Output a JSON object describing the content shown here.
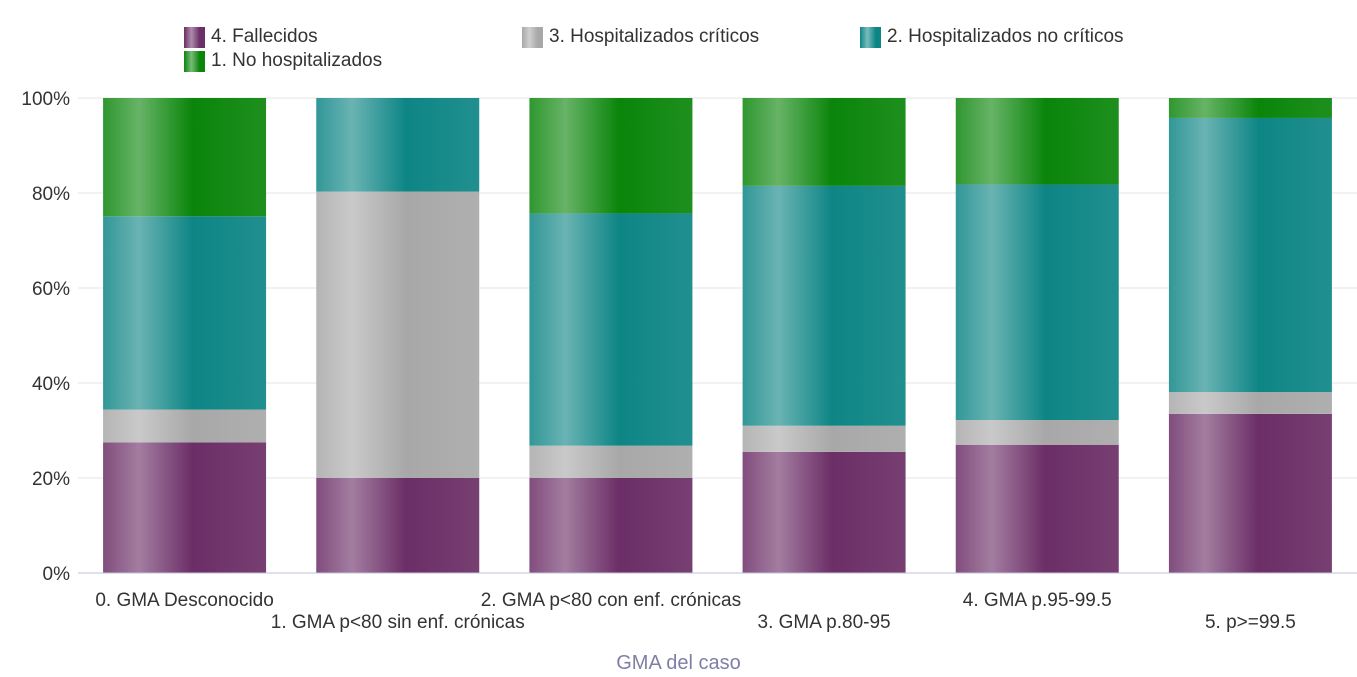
{
  "chart_data": {
    "type": "bar",
    "stacked": "percent",
    "categories": [
      "0. GMA Desconocido",
      "1. GMA p<80 sin enf. crónicas",
      "2. GMA p<80 con enf. crónicas",
      "3. GMA p.80-95",
      "4. GMA p.95-99.5",
      "5. p>=99.5"
    ],
    "series": [
      {
        "name": "4. Fallecidos",
        "color": "#6b2e66",
        "values": [
          27.5,
          20.0,
          20.0,
          25.5,
          27.0,
          33.5
        ]
      },
      {
        "name": "3. Hospitalizados críticos",
        "color": "#a8a8a8",
        "values": [
          6.9,
          60.3,
          6.8,
          5.5,
          5.2,
          4.6
        ]
      },
      {
        "name": "2. Hospitalizados no críticos",
        "color": "#0e8585",
        "values": [
          40.7,
          19.7,
          48.9,
          50.5,
          49.6,
          57.7
        ]
      },
      {
        "name": "1. No hospitalizados",
        "color": "#0a850a",
        "values": [
          24.9,
          0.0,
          24.3,
          18.5,
          18.2,
          4.2
        ]
      }
    ],
    "legend_order": [
      0,
      1,
      2,
      3
    ],
    "y_ticks": [
      "0%",
      "20%",
      "40%",
      "60%",
      "80%",
      "100%"
    ],
    "ylim": [
      0,
      100
    ],
    "xlabel": "GMA del caso",
    "ylabel": "",
    "grid": true,
    "legend_position": "top"
  }
}
